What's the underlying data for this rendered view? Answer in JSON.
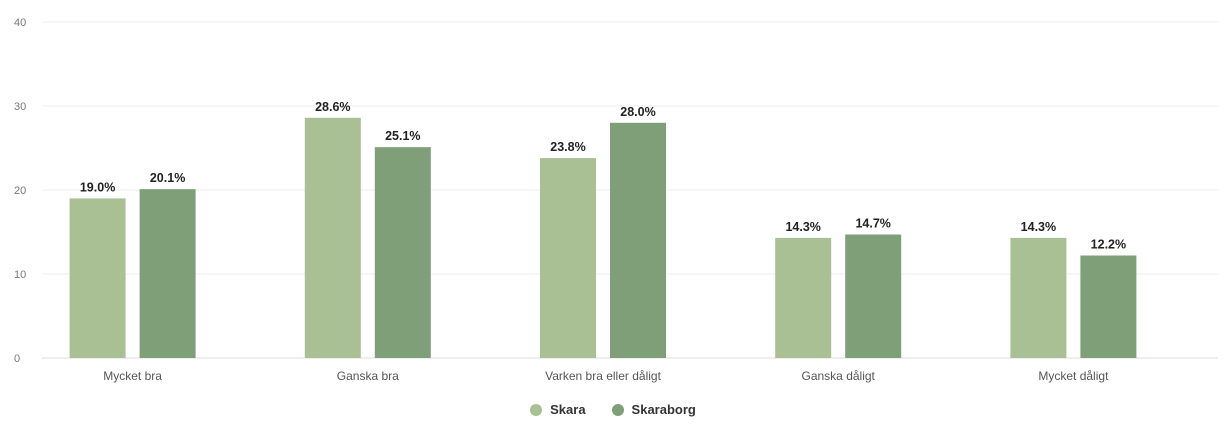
{
  "chart_data": {
    "type": "bar",
    "categories": [
      "Mycket bra",
      "Ganska bra",
      "Varken bra eller dåligt",
      "Ganska dåligt",
      "Mycket dåligt"
    ],
    "series": [
      {
        "name": "Skara",
        "values": [
          19.0,
          28.6,
          23.8,
          14.3,
          14.3
        ],
        "labels": [
          "19.0%",
          "28.6%",
          "23.8%",
          "14.3%",
          "14.3%"
        ],
        "color": "#a9c095"
      },
      {
        "name": "Skaraborg",
        "values": [
          20.1,
          25.1,
          28.0,
          14.7,
          12.2
        ],
        "labels": [
          "20.1%",
          "25.1%",
          "28.0%",
          "14.7%",
          "12.2%"
        ],
        "color": "#7f9f78"
      }
    ],
    "yticks": [
      "0",
      "10",
      "20",
      "30",
      "40"
    ],
    "ylim": [
      0,
      40
    ],
    "grid": true,
    "legend_position": "bottom-center",
    "title": "",
    "xlabel": "",
    "ylabel": ""
  }
}
